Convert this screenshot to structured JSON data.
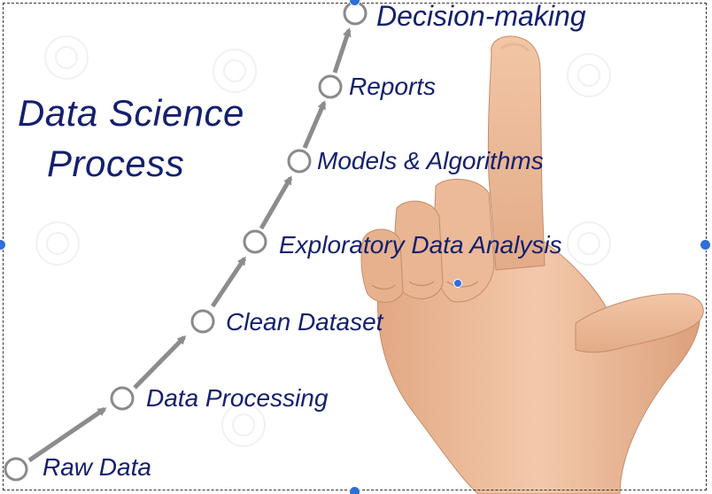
{
  "title_lines": [
    "Data Science",
    "Process"
  ],
  "steps": [
    "Raw Data",
    "Data Processing",
    "Clean Dataset",
    "Exploratory Data Analysis",
    "Models & Algorithms",
    "Reports",
    "Decision-making"
  ],
  "colors": {
    "text": "#14206e",
    "node_stroke": "#8a8a8a",
    "arrow": "#8c8c8c",
    "handle": "#2f6fd6"
  },
  "icons": [
    "pointing-hand-photo",
    "selection-handle"
  ]
}
